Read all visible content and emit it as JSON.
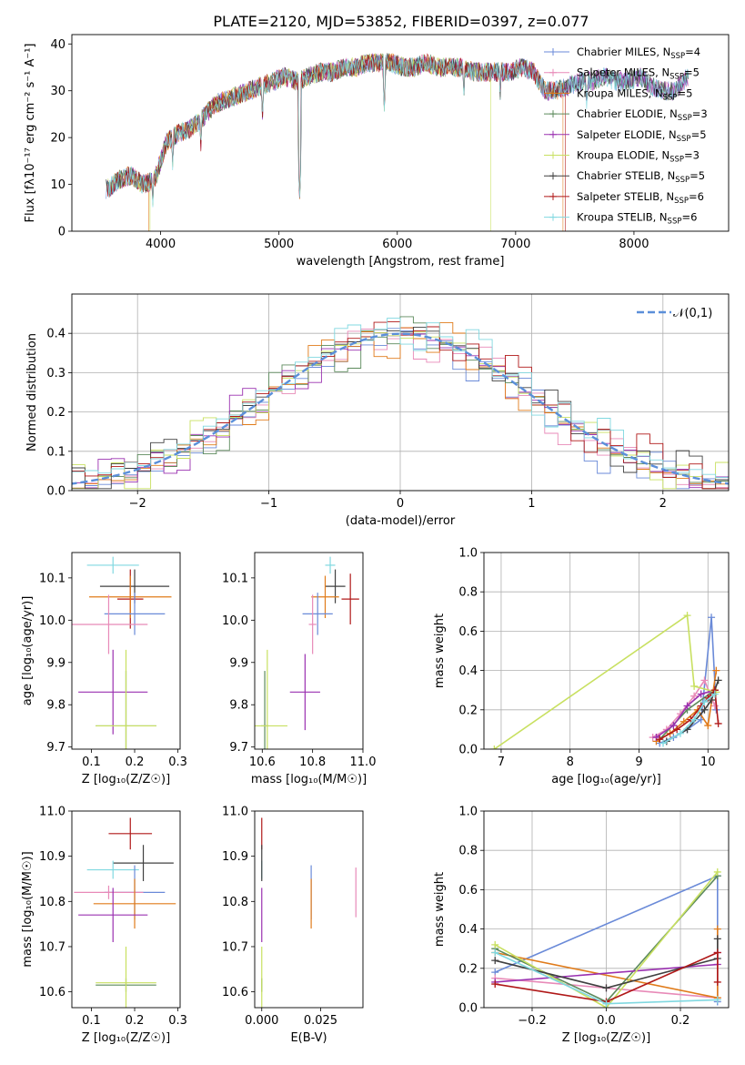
{
  "figure": {
    "title": "PLATE=2120, MJD=53852, FIBERID=0397, z=0.077"
  },
  "chart_data": [
    {
      "id": "spectrum",
      "type": "line",
      "title": "PLATE=2120, MJD=53852, FIBERID=0397, z=0.077",
      "xlabel": "wavelength [Angstrom, rest frame]",
      "ylabel": "Flux [fλ10⁻¹⁷ erg cm⁻² s⁻¹ A⁻¹]",
      "xlim": [
        3250,
        8800
      ],
      "ylim": [
        0,
        42
      ],
      "xticks": [
        4000,
        5000,
        6000,
        7000,
        8000
      ],
      "yticks": [
        0,
        10,
        20,
        30,
        40
      ],
      "legend_position": "upper right",
      "continuum": {
        "x": [
          3550,
          3650,
          3750,
          3850,
          3950,
          4050,
          4150,
          4250,
          4350,
          4450,
          4550,
          4650,
          4750,
          4850,
          4950,
          5050,
          5150,
          5250,
          5350,
          5450,
          5550,
          5650,
          5750,
          5850,
          5950,
          6050,
          6150,
          6250,
          6350,
          6450,
          6550,
          6650,
          6750,
          6850,
          6950,
          7050,
          7150,
          7250,
          7350,
          7450,
          7550,
          7650,
          7750,
          7850,
          7950,
          8050,
          8150,
          8250,
          8350,
          8450
        ],
        "y": [
          9,
          11,
          12,
          10,
          11,
          19,
          21,
          22,
          24,
          27,
          28,
          29,
          30,
          31,
          32,
          33,
          32,
          33,
          34,
          34,
          35,
          35,
          36,
          36,
          36,
          35,
          35,
          36,
          35,
          35,
          35,
          34,
          34,
          34,
          34,
          35,
          34,
          30,
          30,
          31,
          32,
          32,
          33,
          32,
          32,
          33,
          31,
          30,
          30,
          33
        ]
      },
      "absorption_dips": [
        {
          "x": 3934,
          "y": 5
        },
        {
          "x": 4102,
          "y": 13
        },
        {
          "x": 4340,
          "y": 17
        },
        {
          "x": 4861,
          "y": 23
        },
        {
          "x": 5175,
          "y": 6
        },
        {
          "x": 5890,
          "y": 25
        },
        {
          "x": 6563,
          "y": 28
        },
        {
          "x": 6870,
          "y": 28
        },
        {
          "x": 7600,
          "y": 26
        }
      ],
      "series": [
        {
          "name": "Chabrier MILES, N_SSP=4",
          "sub": "SSP",
          "label_pre": "Chabrier MILES, N",
          "label_post": "=4",
          "color": "#6a8ad8",
          "marker": "+"
        },
        {
          "name": "Salpeter MILES, N_SSP=5",
          "sub": "SSP",
          "label_pre": "Salpeter MILES, N",
          "label_post": "=5",
          "color": "#e88ab8",
          "marker": "+"
        },
        {
          "name": "Kroupa MILES, N_SSP=5",
          "sub": "SSP",
          "label_pre": "Kroupa MILES, N",
          "label_post": "=5",
          "color": "#e07b1a",
          "marker": "+"
        },
        {
          "name": "Chabrier ELODIE, N_SSP=3",
          "sub": "SSP",
          "label_pre": "Chabrier ELODIE, N",
          "label_post": "=3",
          "color": "#5c8a5c",
          "marker": "+"
        },
        {
          "name": "Salpeter ELODIE, N_SSP=5",
          "sub": "SSP",
          "label_pre": "Salpeter ELODIE, N",
          "label_post": "=5",
          "color": "#9a30b0",
          "marker": "+"
        },
        {
          "name": "Kroupa ELODIE, N_SSP=3",
          "sub": "SSP",
          "label_pre": "Kroupa ELODIE, N",
          "label_post": "=3",
          "color": "#c8e060",
          "marker": "+"
        },
        {
          "name": "Chabrier STELIB, N_SSP=5",
          "sub": "SSP",
          "label_pre": "Chabrier STELIB, N",
          "label_post": "=5",
          "color": "#404040",
          "marker": "+"
        },
        {
          "name": "Salpeter STELIB, N_SSP=6",
          "sub": "SSP",
          "label_pre": "Salpeter STELIB, N",
          "label_post": "=6",
          "color": "#b01818",
          "marker": "+"
        },
        {
          "name": "Kroupa STELIB, N_SSP=6",
          "sub": "SSP",
          "label_pre": "Kroupa STELIB, N",
          "label_post": "=6",
          "color": "#80d8e0",
          "marker": "+"
        }
      ],
      "edge_drops": [
        {
          "series": 2,
          "x": 3900
        },
        {
          "series": 5,
          "x": 3910
        },
        {
          "series": 5,
          "x": 6790
        },
        {
          "series": 2,
          "x": 7400
        },
        {
          "series": 7,
          "x": 7420
        }
      ]
    },
    {
      "id": "residuals",
      "type": "histogram",
      "xlabel": "(data-model)/error",
      "ylabel": "Normed distribution",
      "xlim": [
        -2.5,
        2.5
      ],
      "ylim": [
        0,
        0.5
      ],
      "xticks": [
        -2,
        -1,
        0,
        1,
        2
      ],
      "yticks": [
        0.0,
        0.1,
        0.2,
        0.3,
        0.4
      ],
      "bin_width": 0.1,
      "bin_start": -2.5,
      "legend": {
        "label": "𝒩(0,1)",
        "position": "upper right",
        "color": "#5b8fd9"
      },
      "bin_jitter": [
        0.004,
        -0.006,
        0.008,
        -0.01,
        0.006,
        -0.004,
        0.01,
        -0.008,
        0.005,
        -0.007,
        0.012,
        -0.01,
        0.006,
        -0.004,
        0.009,
        -0.012,
        0.007,
        -0.005,
        0.011,
        -0.009,
        0.014,
        -0.012,
        0.018,
        -0.016,
        0.025,
        -0.02,
        0.03,
        -0.025,
        0.035,
        -0.03,
        0.04,
        -0.035,
        0.045,
        -0.04,
        0.04,
        -0.035,
        0.042,
        -0.038,
        0.045,
        -0.04,
        0.05,
        -0.045,
        0.05,
        -0.04,
        0.045,
        -0.035,
        0.04,
        -0.03,
        0.035,
        -0.03
      ]
    },
    {
      "id": "age-vs-Z",
      "type": "errorbar",
      "xlabel": "Z [log₁₀(Z/Z☉)]",
      "ylabel": "age  [log₁₀(age/yr)]",
      "xlim": [
        0.055,
        0.305
      ],
      "ylim": [
        9.695,
        10.16
      ],
      "xticks": [
        0.1,
        0.2,
        0.3
      ],
      "yticks": [
        9.7,
        9.8,
        9.9,
        10.0,
        10.1
      ],
      "points": [
        {
          "s": 8,
          "x": 0.15,
          "y": 10.13,
          "xe": 0.06,
          "ye": 0.02
        },
        {
          "s": 6,
          "x": 0.2,
          "y": 10.08,
          "xe": 0.08,
          "ye": 0.04
        },
        {
          "s": 7,
          "x": 0.19,
          "y": 10.05,
          "xe": 0.03,
          "ye": 0.07
        },
        {
          "s": 2,
          "x": 0.19,
          "y": 10.055,
          "xe": 0.095,
          "ye": 0.05
        },
        {
          "s": 0,
          "x": 0.2,
          "y": 10.015,
          "xe": 0.07,
          "ye": 0.05
        },
        {
          "s": 1,
          "x": 0.14,
          "y": 9.99,
          "xe": 0.09,
          "ye": 0.07
        },
        {
          "s": 4,
          "x": 0.15,
          "y": 9.83,
          "xe": 0.08,
          "ye": 0.1
        },
        {
          "s": 3,
          "x": 0.18,
          "y": 9.75,
          "xe": 0.07,
          "ye": 0.13
        },
        {
          "s": 5,
          "x": 0.18,
          "y": 9.75,
          "xe": 0.07,
          "ye": 0.18
        }
      ]
    },
    {
      "id": "age-vs-mass",
      "type": "errorbar",
      "xlabel": "mass [log₁₀(M/M☉)]",
      "ylabel": "",
      "xlim": [
        10.57,
        11.0
      ],
      "ylim": [
        9.695,
        10.16
      ],
      "xticks": [
        10.6,
        10.8,
        11.0
      ],
      "yticks": [
        9.7,
        9.8,
        9.9,
        10.0,
        10.1
      ],
      "points": [
        {
          "s": 8,
          "x": 10.87,
          "y": 10.13,
          "xe": 0.02,
          "ye": 0.02
        },
        {
          "s": 6,
          "x": 10.89,
          "y": 10.08,
          "xe": 0.04,
          "ye": 0.04
        },
        {
          "s": 7,
          "x": 10.95,
          "y": 10.05,
          "xe": 0.035,
          "ye": 0.06
        },
        {
          "s": 2,
          "x": 10.85,
          "y": 10.055,
          "xe": 0.055,
          "ye": 0.05
        },
        {
          "s": 0,
          "x": 10.82,
          "y": 10.015,
          "xe": 0.06,
          "ye": 0.05
        },
        {
          "s": 1,
          "x": 10.8,
          "y": 9.99,
          "xe": 0.015,
          "ye": 0.07
        },
        {
          "s": 4,
          "x": 10.77,
          "y": 9.83,
          "xe": 0.06,
          "ye": 0.09
        },
        {
          "s": 3,
          "x": 10.61,
          "y": 9.75,
          "xe": 0.015,
          "ye": 0.13
        },
        {
          "s": 5,
          "x": 10.62,
          "y": 9.75,
          "xe": 0.08,
          "ye": 0.18
        }
      ]
    },
    {
      "id": "mass-weight-vs-age",
      "type": "line",
      "xlabel": "age  [log₁₀(age/yr)]",
      "ylabel": "mass weight",
      "xlim": [
        6.75,
        10.3
      ],
      "ylim": [
        0,
        1.0
      ],
      "xticks": [
        7,
        8,
        9,
        10
      ],
      "yticks": [
        0.0,
        0.2,
        0.4,
        0.6,
        0.8,
        1.0
      ],
      "grid": true,
      "lines": [
        {
          "s": 0,
          "x": [
            9.3,
            9.5,
            9.7,
            9.9,
            10.05,
            10.12
          ],
          "y": [
            0.03,
            0.06,
            0.1,
            0.15,
            0.67,
            0.2
          ]
        },
        {
          "s": 1,
          "x": [
            9.2,
            9.4,
            9.6,
            9.8,
            9.95,
            10.1
          ],
          "y": [
            0.06,
            0.1,
            0.18,
            0.27,
            0.35,
            0.22
          ]
        },
        {
          "s": 2,
          "x": [
            9.25,
            9.45,
            9.65,
            9.85,
            10.0,
            10.12
          ],
          "y": [
            0.04,
            0.08,
            0.14,
            0.2,
            0.12,
            0.4
          ]
        },
        {
          "s": 3,
          "x": [
            9.3,
            9.7,
            10.1
          ],
          "y": [
            0.05,
            0.2,
            0.3
          ]
        },
        {
          "s": 4,
          "x": [
            9.25,
            9.5,
            9.7,
            9.9,
            10.1
          ],
          "y": [
            0.06,
            0.12,
            0.22,
            0.28,
            0.3
          ]
        },
        {
          "s": 5,
          "x": [
            6.9,
            9.7,
            9.8,
            10.12
          ],
          "y": [
            0.0,
            0.68,
            0.32,
            0.29
          ]
        },
        {
          "s": 6,
          "x": [
            9.4,
            9.7,
            9.95,
            10.05,
            10.15
          ],
          "y": [
            0.04,
            0.1,
            0.2,
            0.25,
            0.35
          ]
        },
        {
          "s": 7,
          "x": [
            9.3,
            9.55,
            9.75,
            9.9,
            10.0,
            10.1,
            10.15
          ],
          "y": [
            0.05,
            0.1,
            0.15,
            0.22,
            0.26,
            0.3,
            0.13
          ]
        },
        {
          "s": 8,
          "x": [
            9.35,
            9.6,
            9.8,
            9.95,
            10.1
          ],
          "y": [
            0.03,
            0.08,
            0.15,
            0.24,
            0.28
          ]
        }
      ]
    },
    {
      "id": "mass-vs-Z",
      "type": "errorbar",
      "xlabel": "Z [log₁₀(Z/Z☉)]",
      "ylabel": "mass [log₁₀(M/M☉)]",
      "xlim": [
        0.055,
        0.305
      ],
      "ylim": [
        10.565,
        11.0
      ],
      "xticks": [
        0.1,
        0.2,
        0.3
      ],
      "yticks": [
        10.6,
        10.7,
        10.8,
        10.9,
        11.0
      ],
      "points": [
        {
          "s": 7,
          "x": 0.19,
          "y": 10.95,
          "xe": 0.05,
          "ye": 0.035
        },
        {
          "s": 6,
          "x": 0.22,
          "y": 10.885,
          "xe": 0.07,
          "ye": 0.04
        },
        {
          "s": 8,
          "x": 0.15,
          "y": 10.87,
          "xe": 0.06,
          "ye": 0.02
        },
        {
          "s": 0,
          "x": 0.2,
          "y": 10.82,
          "xe": 0.07,
          "ye": 0.06
        },
        {
          "s": 1,
          "x": 0.14,
          "y": 10.82,
          "xe": 0.08,
          "ye": 0.015
        },
        {
          "s": 2,
          "x": 0.2,
          "y": 10.795,
          "xe": 0.095,
          "ye": 0.055
        },
        {
          "s": 4,
          "x": 0.15,
          "y": 10.77,
          "xe": 0.08,
          "ye": 0.06
        },
        {
          "s": 3,
          "x": 0.18,
          "y": 10.615,
          "xe": 0.07,
          "ye": 0.015
        },
        {
          "s": 5,
          "x": 0.18,
          "y": 10.62,
          "xe": 0.07,
          "ye": 0.08
        }
      ]
    },
    {
      "id": "mass-vs-EBV",
      "type": "errorbar",
      "xlabel": "E(B-V)",
      "ylabel": "",
      "xlim": [
        -0.003,
        0.043
      ],
      "ylim": [
        10.565,
        11.0
      ],
      "xticks": [
        0.0,
        0.025
      ],
      "xtick_labels": [
        "0.000",
        "0.025"
      ],
      "yticks": [
        10.6,
        10.7,
        10.8,
        10.9,
        11.0
      ],
      "points": [
        {
          "s": 7,
          "x": 0.0,
          "y": 10.95,
          "xe": 0,
          "ye": 0.035
        },
        {
          "s": 8,
          "x": 0.0,
          "y": 10.87,
          "xe": 0,
          "ye": 0.02
        },
        {
          "s": 6,
          "x": 0.0,
          "y": 10.885,
          "xe": 0,
          "ye": 0.04
        },
        {
          "s": 0,
          "x": 0.021,
          "y": 10.82,
          "xe": 0,
          "ye": 0.06
        },
        {
          "s": 2,
          "x": 0.021,
          "y": 10.795,
          "xe": 0,
          "ye": 0.055
        },
        {
          "s": 1,
          "x": 0.04,
          "y": 10.82,
          "xe": 0,
          "ye": 0.055
        },
        {
          "s": 4,
          "x": 0.0,
          "y": 10.77,
          "xe": 0,
          "ye": 0.06
        },
        {
          "s": 3,
          "x": 0.0,
          "y": 10.615,
          "xe": 0,
          "ye": 0.015
        },
        {
          "s": 5,
          "x": 0.0,
          "y": 10.62,
          "xe": 0,
          "ye": 0.08
        }
      ]
    },
    {
      "id": "mass-weight-vs-Z",
      "type": "line",
      "xlabel": "Z [log₁₀(Z/Z☉)]",
      "ylabel": "mass weight",
      "xlim": [
        -0.33,
        0.33
      ],
      "ylim": [
        0,
        1.0
      ],
      "xticks": [
        -0.2,
        0.0,
        0.2
      ],
      "yticks": [
        0.0,
        0.2,
        0.4,
        0.6,
        0.8,
        1.0
      ],
      "grid": true,
      "lines": [
        {
          "s": 0,
          "x": [
            -0.3,
            0.3,
            0.3
          ],
          "y": [
            0.18,
            0.67,
            0.03
          ]
        },
        {
          "s": 1,
          "x": [
            -0.3,
            0.0,
            0.3,
            0.3
          ],
          "y": [
            0.15,
            0.1,
            0.05,
            0.28
          ]
        },
        {
          "s": 2,
          "x": [
            -0.3,
            0.3,
            0.3
          ],
          "y": [
            0.28,
            0.05,
            0.4
          ]
        },
        {
          "s": 3,
          "x": [
            -0.3,
            0.0,
            0.3
          ],
          "y": [
            0.3,
            0.03,
            0.67
          ]
        },
        {
          "s": 4,
          "x": [
            -0.3,
            0.3,
            0.3
          ],
          "y": [
            0.13,
            0.22,
            0.28
          ]
        },
        {
          "s": 5,
          "x": [
            -0.3,
            0.0,
            0.3
          ],
          "y": [
            0.32,
            0.0,
            0.69
          ]
        },
        {
          "s": 6,
          "x": [
            -0.3,
            0.0,
            0.3,
            0.3
          ],
          "y": [
            0.24,
            0.1,
            0.25,
            0.35
          ]
        },
        {
          "s": 7,
          "x": [
            -0.3,
            0.0,
            0.3,
            0.3
          ],
          "y": [
            0.12,
            0.03,
            0.28,
            0.13
          ]
        },
        {
          "s": 8,
          "x": [
            -0.3,
            0.0,
            0.3
          ],
          "y": [
            0.28,
            0.02,
            0.04
          ]
        }
      ]
    }
  ]
}
